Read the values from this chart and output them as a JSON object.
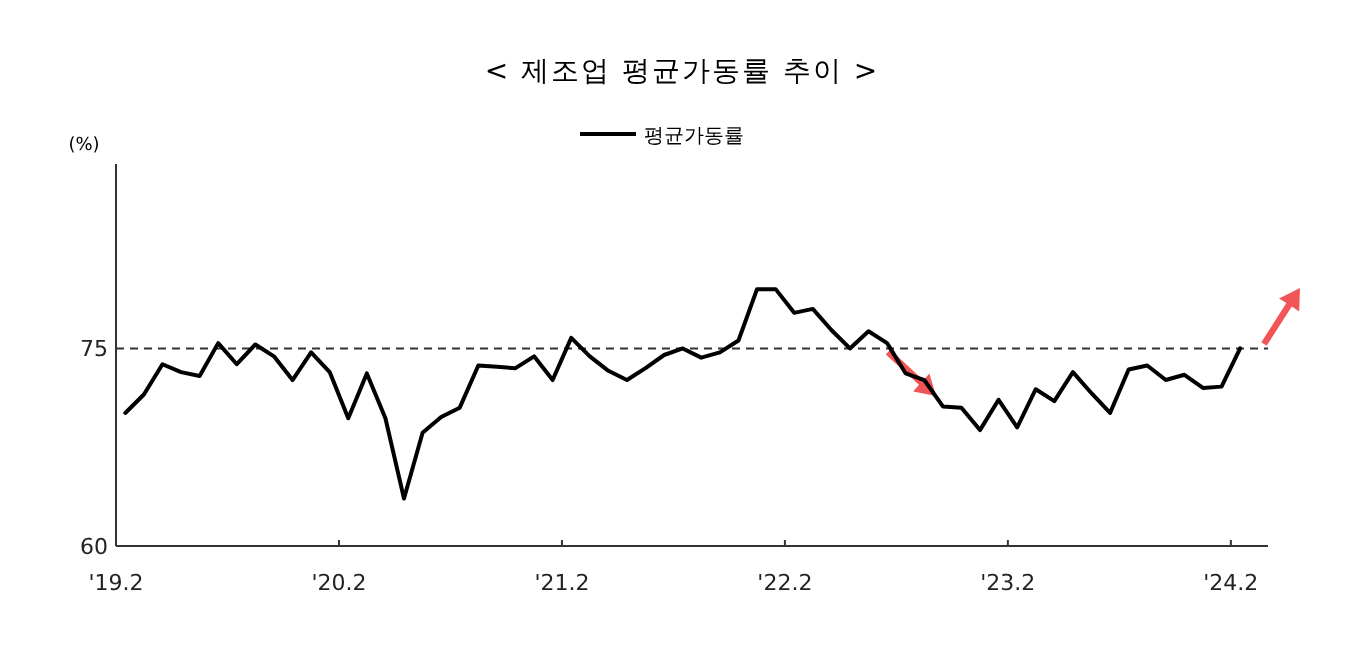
{
  "chart_data": {
    "type": "line",
    "title": "< 제조업 평균가동률 추이 >",
    "ylabel": "(%)",
    "x": [
      "2019-02",
      "2019-03",
      "2019-04",
      "2019-05",
      "2019-06",
      "2019-07",
      "2019-08",
      "2019-09",
      "2019-10",
      "2019-11",
      "2019-12",
      "2020-01",
      "2020-02",
      "2020-03",
      "2020-04",
      "2020-05",
      "2020-06",
      "2020-07",
      "2020-08",
      "2020-09",
      "2020-10",
      "2020-11",
      "2020-12",
      "2021-01",
      "2021-02",
      "2021-03",
      "2021-04",
      "2021-05",
      "2021-06",
      "2021-07",
      "2021-08",
      "2021-09",
      "2021-10",
      "2021-11",
      "2021-12",
      "2022-01",
      "2022-02",
      "2022-03",
      "2022-04",
      "2022-05",
      "2022-06",
      "2022-07",
      "2022-08",
      "2022-09",
      "2022-10",
      "2022-11",
      "2022-12",
      "2023-01",
      "2023-02",
      "2023-03",
      "2023-04",
      "2023-05",
      "2023-06",
      "2023-07",
      "2023-08",
      "2023-09",
      "2023-10",
      "2023-11",
      "2023-12",
      "2024-01",
      "2024-02"
    ],
    "series": [
      {
        "name": "평균가동률",
        "color": "#000000",
        "values": [
          70.1,
          71.5,
          73.8,
          73.2,
          72.9,
          75.4,
          73.8,
          75.3,
          74.4,
          72.6,
          74.7,
          73.2,
          69.7,
          73.1,
          69.7,
          63.6,
          68.6,
          69.8,
          70.5,
          73.7,
          73.6,
          73.5,
          74.4,
          72.6,
          75.8,
          74.4,
          73.3,
          72.6,
          73.5,
          74.5,
          75.0,
          74.3,
          74.7,
          75.6,
          79.5,
          79.5,
          77.7,
          78.0,
          76.4,
          75.0,
          76.3,
          75.4,
          73.1,
          72.6,
          70.6,
          70.5,
          68.8,
          71.1,
          69.0,
          71.9,
          71.0,
          73.2,
          71.6,
          70.1,
          73.4,
          73.7,
          72.6,
          73.0,
          72.0,
          72.1,
          75.0
        ]
      }
    ],
    "xlim": [
      "2019-01-16",
      "2024-03-16"
    ],
    "xticks": [
      {
        "value": "2019-01-16",
        "label": "'19.2"
      },
      {
        "value": "2020-01-16",
        "label": "'20.2"
      },
      {
        "value": "2021-01-16",
        "label": "'21.2"
      },
      {
        "value": "2022-01-16",
        "label": "'22.2"
      },
      {
        "value": "2023-01-16",
        "label": "'23.2"
      },
      {
        "value": "2024-01-16",
        "label": "'24.2"
      }
    ],
    "ylim": [
      60,
      89
    ],
    "yticks": [
      60,
      75
    ],
    "ref_lines": [
      {
        "axis": "y",
        "value": 75,
        "color": "#333333",
        "line_style": "dashed"
      }
    ],
    "legend": "top",
    "marker": "none",
    "line_style": "solid"
  }
}
